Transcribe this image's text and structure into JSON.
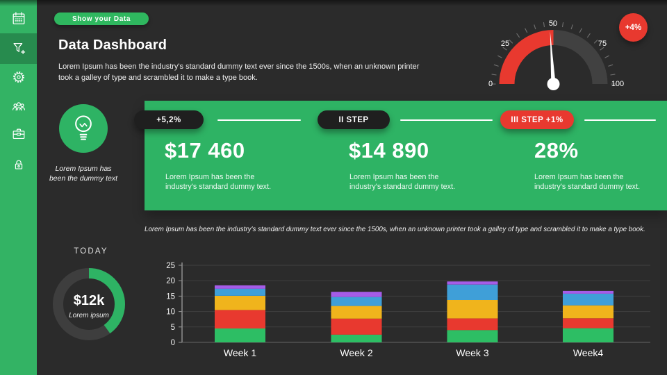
{
  "colors": {
    "background": "#2b2b2b",
    "sidebar_green": "#33b364",
    "panel_green": "#2eb364",
    "pill_dark": "#1f1f1f",
    "accent_red": "#e8392f"
  },
  "sidebar": {
    "items": [
      {
        "icon": "calendar"
      },
      {
        "icon": "filter"
      },
      {
        "icon": "gear"
      },
      {
        "icon": "team"
      },
      {
        "icon": "briefcase"
      },
      {
        "icon": "lock"
      }
    ],
    "selected_index": 1
  },
  "header": {
    "button_label": "Show your Data",
    "title": "Data Dashboard",
    "description": "Lorem Ipsum has been the industry's standard dummy text ever since the 1500s, when an unknown printer took a galley of type and scrambled it to make a type book."
  },
  "highlight": {
    "icon": "lightbulb",
    "caption_line1": "Lorem Ipsum has",
    "caption_line2": "been the dummy text"
  },
  "stats": [
    {
      "pill": "+5,2%",
      "style": "dark",
      "value": "$17 460",
      "desc": "Lorem Ipsum has been the industry's standard dummy text."
    },
    {
      "pill": "II STEP",
      "style": "dark",
      "value": "$14 890",
      "desc": "Lorem Ipsum has been the industry's standard dummy text."
    },
    {
      "pill": "III STEP +1%",
      "style": "red",
      "value": "28%",
      "desc": "Lorem Ipsum has been the industry's standard dummy text."
    }
  ],
  "note": "Lorem Ipsum has been the industry's standard dummy text ever since the 1500s, when an unknown printer took a galley of type and scrambled it to make a type book.",
  "today": {
    "label": "TODAY",
    "value": "$12k",
    "subtitle": "Lorem ipsum"
  },
  "chart_data": [
    {
      "type": "gauge",
      "min": 0,
      "max": 100,
      "value": 48,
      "red_zone": [
        0,
        50
      ],
      "tick_step": 5,
      "tick_labels": [
        "0",
        "25",
        "50",
        "75",
        "100"
      ],
      "badge": "+4%",
      "red_color": "#e8392f",
      "rest_color": "#414141"
    },
    {
      "type": "donut",
      "label": "TODAY",
      "center_value": "$12k",
      "center_label": "Lorem ipsum",
      "fraction": 0.4,
      "color": "#2eb364",
      "rest_color": "#3e3e3e"
    },
    {
      "type": "bar",
      "stacked": true,
      "categories": [
        "Week 1",
        "Week 2",
        "Week 3",
        "Week4"
      ],
      "ylim": [
        0,
        25
      ],
      "yticks": [
        0,
        5,
        10,
        15,
        20,
        25
      ],
      "series": [
        {
          "name": "green",
          "color": "#2dbe64",
          "values": [
            4.5,
            2.5,
            4.0,
            4.6
          ]
        },
        {
          "name": "red",
          "color": "#e8392f",
          "values": [
            6.0,
            5.2,
            3.75,
            3.2
          ]
        },
        {
          "name": "yellow",
          "color": "#f0b41c",
          "values": [
            4.6,
            4.1,
            6.0,
            4.2
          ]
        },
        {
          "name": "blue",
          "color": "#3f9fd8",
          "values": [
            2.3,
            2.9,
            5.0,
            3.8
          ]
        },
        {
          "name": "purple",
          "color": "#a55ce8",
          "values": [
            1.1,
            1.7,
            1.0,
            0.9
          ]
        }
      ]
    }
  ]
}
